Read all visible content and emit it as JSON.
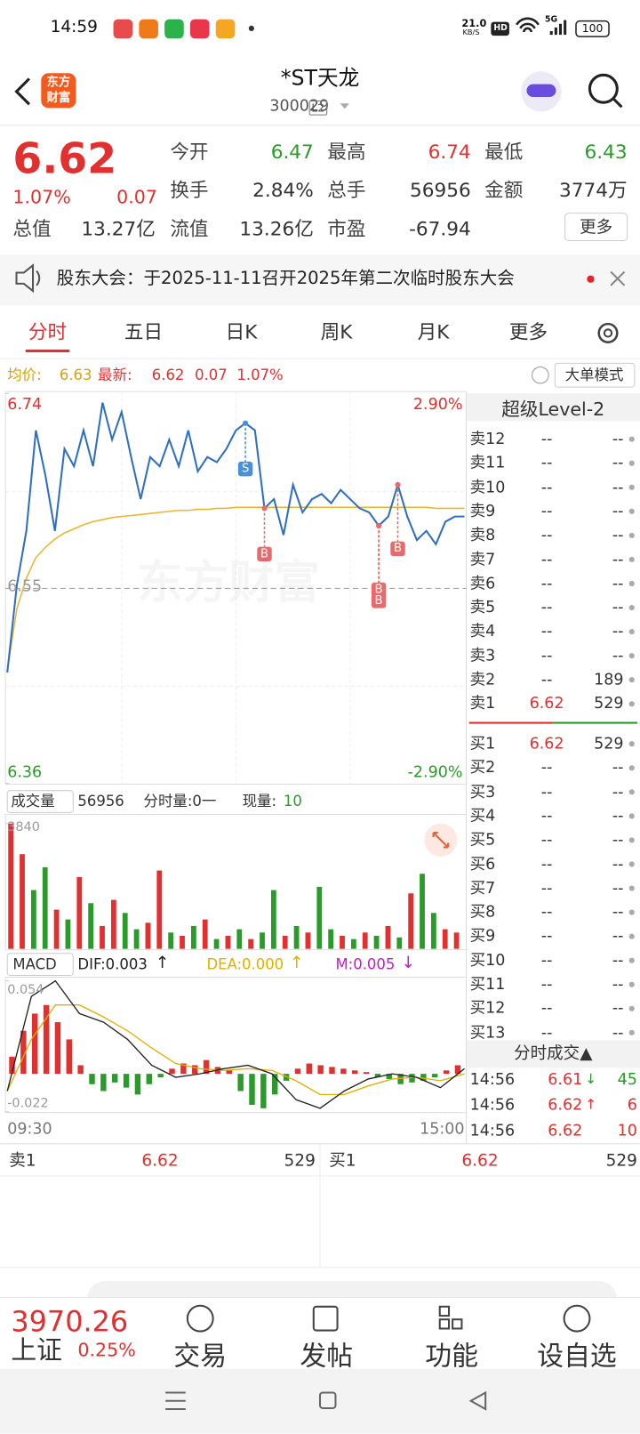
{
  "status_bar": {
    "time": "14:59",
    "net_speed": "21.0",
    "net_unit": "KB/S",
    "hd": "HD",
    "network": "5G",
    "battery": "100"
  },
  "header": {
    "logo": [
      "东方",
      "财富"
    ],
    "title": "*ST天龙",
    "code": "300029",
    "badge": "L2"
  },
  "quote": {
    "price": 6.62,
    "change_pct": "1.07%",
    "change": 0.07,
    "stats": [
      {
        "label": "今开",
        "value": 6.47
      },
      {
        "label": "最高",
        "value": 6.74
      },
      {
        "label": "最低",
        "value": 6.43
      },
      {
        "label": "换手",
        "value": "2.84%"
      },
      {
        "label": "总手",
        "value": 56956
      },
      {
        "label": "金额",
        "value": "3774万"
      },
      {
        "label": "总值",
        "value": "13.27亿"
      },
      {
        "label": "流值",
        "value": "13.26亿"
      },
      {
        "label": "市盈",
        "value": -67.94
      }
    ],
    "more": "更多"
  },
  "notice": "股东大会：于2025-11-11召开2025年第二次临时股东大会",
  "tabs": [
    "分时",
    "五日",
    "日K",
    "周K",
    "月K",
    "更多"
  ],
  "info": {
    "avg_label": "均价:",
    "avg": 6.63,
    "latest_label": "最新:",
    "latest": 6.62,
    "change": 0.07,
    "change_pct": "1.07%",
    "mode": "大单模式"
  },
  "price_chart": {
    "ylim": [
      6.36,
      6.74
    ],
    "yticks": [
      6.36,
      6.55,
      6.74
    ],
    "pct_ticks": [
      "-2.90%",
      "2.90%"
    ],
    "xticks": [
      "09:30",
      "15:00"
    ],
    "watermark": "东方财富",
    "price": [
      6.468,
      6.553,
      6.606,
      6.704,
      6.66,
      6.606,
      6.686,
      6.669,
      6.704,
      6.669,
      6.731,
      6.695,
      6.722,
      6.678,
      6.637,
      6.678,
      6.669,
      6.695,
      6.669,
      6.704,
      6.664,
      6.678,
      6.673,
      6.686,
      6.704,
      6.711,
      6.704,
      6.628,
      6.637,
      6.602,
      6.651,
      6.624,
      6.637,
      6.642,
      6.633,
      6.646,
      6.637,
      6.628,
      6.624,
      6.611,
      6.62,
      6.651,
      6.62,
      6.597,
      6.606,
      6.593,
      6.615,
      6.62,
      6.62
    ],
    "avg": [
      6.47,
      6.53,
      6.56,
      6.58,
      6.59,
      6.598,
      6.604,
      6.608,
      6.612,
      6.615,
      6.617,
      6.619,
      6.62,
      6.621,
      6.622,
      6.623,
      6.624,
      6.625,
      6.626,
      6.626,
      6.627,
      6.627,
      6.628,
      6.628,
      6.629,
      6.629,
      6.629,
      6.629,
      6.629,
      6.629,
      6.629,
      6.629,
      6.629,
      6.629,
      6.629,
      6.629,
      6.629,
      6.629,
      6.629,
      6.629,
      6.629,
      6.629,
      6.629,
      6.629,
      6.629,
      6.628,
      6.628,
      6.628,
      6.628
    ],
    "price_color": "#2f6fbf",
    "avg_color": "#e8b630",
    "markers": [
      {
        "text": "S",
        "at": 25,
        "color": "#4a90d9"
      },
      {
        "text": "B",
        "at": 27,
        "color": "#e86a6a"
      },
      {
        "text": "B",
        "at": 39,
        "color": "#e86a6a"
      },
      {
        "text": "B",
        "at": 39,
        "color": "#e86a6a"
      },
      {
        "text": "B",
        "at": 41,
        "color": "#e86a6a"
      }
    ]
  },
  "volume_chart": {
    "label": "成交量",
    "total": 56956,
    "period_label": "分时量:0一",
    "current_label": "现量:",
    "current": 10,
    "ylim": [
      0,
      3840
    ],
    "yticks": [
      3840
    ],
    "values": [
      3840,
      2900,
      1800,
      2500,
      1200,
      900,
      2200,
      1400,
      700,
      1500,
      1100,
      600,
      800,
      2400,
      500,
      400,
      700,
      900,
      300,
      400,
      600,
      300,
      500,
      1800,
      400,
      700,
      500,
      1900,
      600,
      400,
      300,
      500,
      400,
      700,
      350,
      1700,
      2300,
      1100,
      600,
      500
    ],
    "colors": [
      "#e03030",
      "#e03030",
      "#2a9a2a",
      "#2a9a2a",
      "#e03030",
      "#2a9a2a",
      "#e03030",
      "#2a9a2a",
      "#e03030",
      "#e03030",
      "#2a9a2a",
      "#2a9a2a",
      "#e03030",
      "#e03030",
      "#2a9a2a",
      "#e03030",
      "#2a9a2a",
      "#e03030",
      "#2a9a2a",
      "#e03030",
      "#2a9a2a",
      "#e03030",
      "#2a9a2a",
      "#2a9a2a",
      "#e03030",
      "#2a9a2a",
      "#e03030",
      "#2a9a2a",
      "#2a9a2a",
      "#e03030",
      "#2a9a2a",
      "#e03030",
      "#2a9a2a",
      "#e03030",
      "#2a9a2a",
      "#e03030",
      "#2a9a2a",
      "#2a9a2a",
      "#e03030",
      "#e03030"
    ]
  },
  "macd_chart": {
    "label": "MACD",
    "dif": "DIF:0.003",
    "dif_arrow": "↑",
    "dea": "DEA:0.000",
    "dea_arrow": "↑",
    "m": "M:0.005",
    "m_arrow": "↓",
    "ylim": [
      -0.022,
      0.054
    ],
    "yticks": [
      -0.022,
      0.054
    ],
    "hist": [
      0.01,
      0.025,
      0.035,
      0.04,
      0.03,
      0.02,
      0.005,
      -0.006,
      -0.01,
      -0.005,
      -0.008,
      -0.012,
      -0.006,
      -0.002,
      0.003,
      0.006,
      0.005,
      0.008,
      0.004,
      0.002,
      -0.01,
      -0.018,
      -0.02,
      -0.012,
      -0.004,
      0.003,
      0.006,
      0.005,
      0.004,
      0.003,
      0.002,
      0.001,
      -0.002,
      -0.003,
      -0.006,
      -0.005,
      -0.004,
      -0.002,
      0.002,
      0.005
    ],
    "dif_line": [
      -0.01,
      0.045,
      0.054,
      0.035,
      0.03,
      0.02,
      0.005,
      -0.002,
      0.0,
      0.003,
      0.005,
      0.0,
      -0.015,
      -0.02,
      -0.01,
      -0.003,
      0.0,
      -0.002,
      -0.008,
      0.003
    ],
    "dea_line": [
      -0.01,
      0.02,
      0.04,
      0.04,
      0.033,
      0.025,
      0.015,
      0.006,
      0.003,
      0.002,
      0.003,
      0.002,
      -0.004,
      -0.012,
      -0.012,
      -0.007,
      -0.003,
      -0.002,
      -0.004,
      0.0
    ]
  },
  "level2": {
    "title": "超级Level-2",
    "sells": [
      {
        "label": "卖12",
        "price": "--",
        "volume": "--"
      },
      {
        "label": "卖11",
        "price": "--",
        "volume": "--"
      },
      {
        "label": "卖10",
        "price": "--",
        "volume": "--"
      },
      {
        "label": "卖9",
        "price": "--",
        "volume": "--"
      },
      {
        "label": "卖8",
        "price": "--",
        "volume": "--"
      },
      {
        "label": "卖7",
        "price": "--",
        "volume": "--"
      },
      {
        "label": "卖6",
        "price": "--",
        "volume": "--"
      },
      {
        "label": "卖5",
        "price": "--",
        "volume": "--"
      },
      {
        "label": "卖4",
        "price": "--",
        "volume": "--"
      },
      {
        "label": "卖3",
        "price": "--",
        "volume": "--"
      },
      {
        "label": "卖2",
        "price": "--",
        "volume": 189
      },
      {
        "label": "卖1",
        "price": 6.62,
        "volume": 529
      }
    ],
    "buys": [
      {
        "label": "买1",
        "price": 6.62,
        "volume": 529
      },
      {
        "label": "买2",
        "price": "--",
        "volume": "--"
      },
      {
        "label": "买3",
        "price": "--",
        "volume": "--"
      },
      {
        "label": "买4",
        "price": "--",
        "volume": "--"
      },
      {
        "label": "买5",
        "price": "--",
        "volume": "--"
      },
      {
        "label": "买6",
        "price": "--",
        "volume": "--"
      },
      {
        "label": "买7",
        "price": "--",
        "volume": "--"
      },
      {
        "label": "买8",
        "price": "--",
        "volume": "--"
      },
      {
        "label": "买9",
        "price": "--",
        "volume": "--"
      },
      {
        "label": "买10",
        "price": "--",
        "volume": "--"
      },
      {
        "label": "买11",
        "price": "--",
        "volume": "--"
      },
      {
        "label": "买12",
        "price": "--",
        "volume": "--"
      },
      {
        "label": "买13",
        "price": "--",
        "volume": "--"
      }
    ]
  },
  "trades": {
    "title": "分时成交▲",
    "rows": [
      {
        "time": "14:56",
        "price": 6.61,
        "arrow": "↓",
        "volume": 45
      },
      {
        "time": "14:56",
        "price": 6.62,
        "arrow": "↑",
        "volume": 6
      },
      {
        "time": "14:56",
        "price": 6.62,
        "arrow": "",
        "volume": 10
      }
    ]
  },
  "bottom_book": {
    "sell": {
      "label": "卖1",
      "price": 6.62,
      "volume": 529
    },
    "buy": {
      "label": "买1",
      "price": 6.62,
      "volume": 529
    }
  },
  "index": {
    "value": 3970.26,
    "name": "上证",
    "change_pct": "0.25%"
  },
  "nav": [
    "交易",
    "发帖",
    "功能",
    "设自选"
  ]
}
